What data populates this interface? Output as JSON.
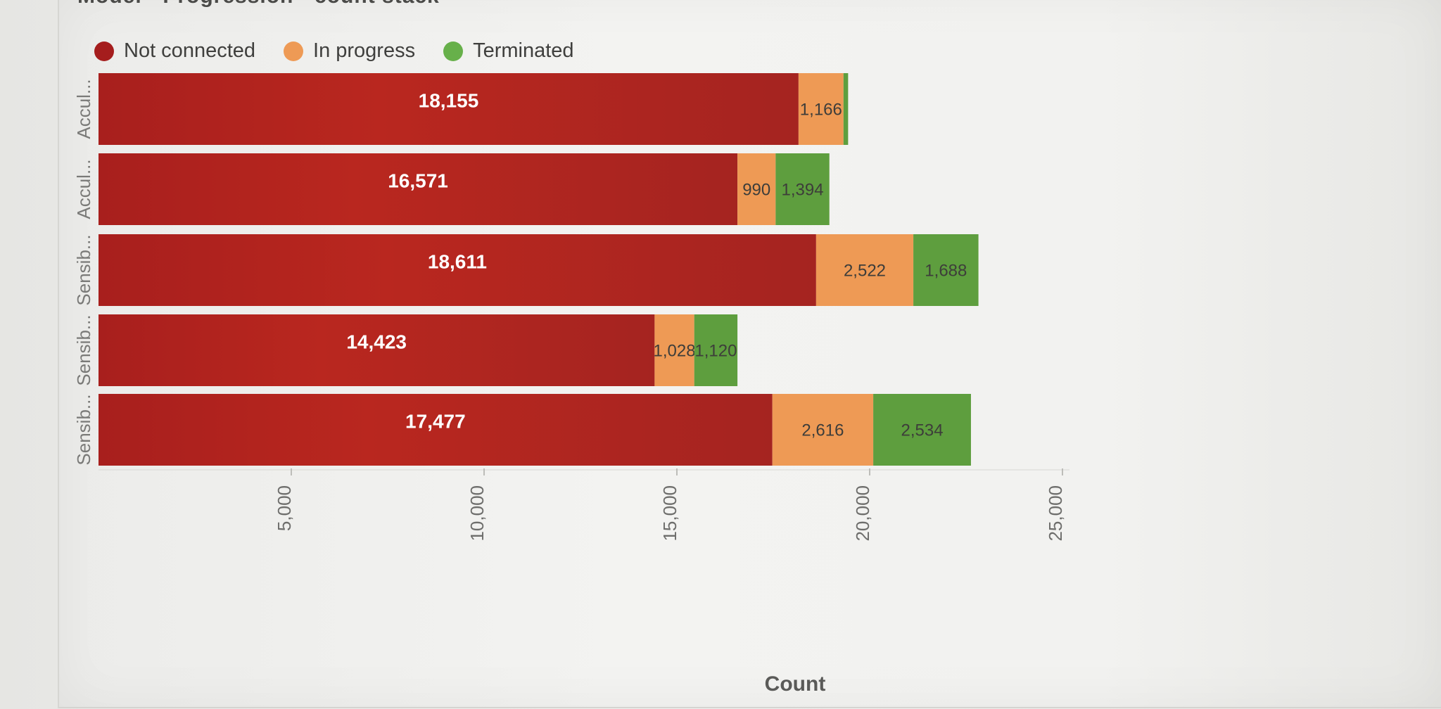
{
  "header": {
    "title": "Model - Progression - count stack"
  },
  "legend": {
    "items": [
      {
        "label": "Not connected",
        "color": "#b22222"
      },
      {
        "label": "In progress",
        "color": "#ee9a55"
      },
      {
        "label": "Terminated",
        "color": "#5e9e3e"
      }
    ]
  },
  "chart_data": {
    "type": "bar",
    "orientation": "horizontal",
    "stacked": true,
    "categories": [
      "Accul...",
      "Accul...",
      "Sensib...",
      "Sensib...",
      "Sensib..."
    ],
    "series": [
      {
        "name": "Not connected",
        "color": "#b22222",
        "values": [
          18155,
          16571,
          18611,
          14423,
          17477
        ]
      },
      {
        "name": "In progress",
        "color": "#ee9a55",
        "values": [
          1166,
          990,
          2522,
          1028,
          2616
        ]
      },
      {
        "name": "Terminated",
        "color": "#5e9e3e",
        "values": [
          120,
          1394,
          1688,
          1120,
          2534
        ]
      }
    ],
    "data_labels": [
      [
        "18,155",
        "1,166",
        ""
      ],
      [
        "16,571",
        "990",
        "1,394"
      ],
      [
        "18,611",
        "2,522",
        "1,688"
      ],
      [
        "14,423",
        "1,028",
        "1,120"
      ],
      [
        "17,477",
        "2,616",
        "2,534"
      ]
    ],
    "xlabel": "Count",
    "ylabel": "",
    "xlim": [
      0,
      25000
    ],
    "xticks": [
      5000,
      10000,
      15000,
      20000,
      25000
    ],
    "xtick_labels": [
      "5,000",
      "10,000",
      "15,000",
      "20,000",
      "25,000"
    ],
    "legend_position": "top-left",
    "grid": false
  }
}
